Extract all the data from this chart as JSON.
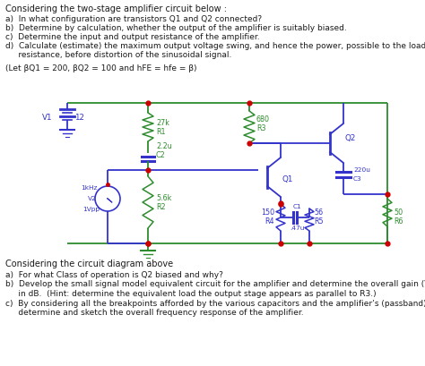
{
  "title_text": "Considering the two-stage amplifier circuit below :",
  "questions_top": [
    "a)  In what configuration are transistors Q1 and Q2 connected?",
    "b)  Determine by calculation, whether the output of the amplifier is suitably biased.",
    "c)  Determine the input and output resistance of the amplifier.",
    "d)  Calculate (estimate) the maximum output voltage swing, and hence the power, possible to the load",
    "     resistance, before distortion of the sinusoidal signal."
  ],
  "param_text": "(Let βQ1 = 200, βQ2 = 100 and hFE = hfe = β)",
  "bottom_title": "Considering the circuit diagram above",
  "questions_bottom": [
    "a)  For what Class of operation is Q2 biased and why?",
    "b)  Develop the small signal model equivalent circuit for the amplifier and determine the overall gain (Vo/Vin)",
    "     in dB.  (Hint: determine the equivalent load the output stage appears as parallel to R3.)",
    "c)  By considering all the breakpoints afforded by the various capacitors and the amplifier’s (passband) gain,",
    "     determine and sketch the overall frequency response of the amplifier."
  ],
  "bg_color": "#ffffff",
  "text_color": "#1a1a1a",
  "green_color": "#2d8c2d",
  "blue_color": "#3333cc",
  "red_dot_color": "#cc0000",
  "font_size_title": 7.0,
  "font_size_body": 6.5,
  "font_size_label": 5.8
}
